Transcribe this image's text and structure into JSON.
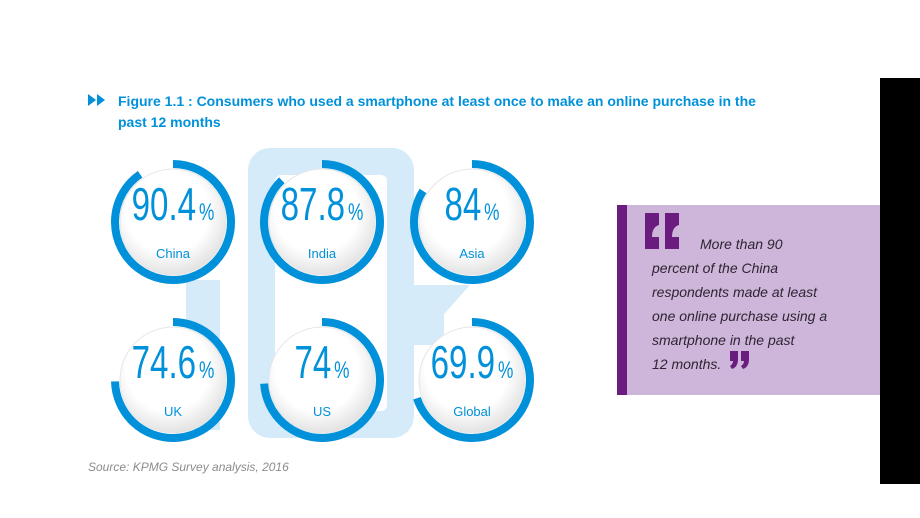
{
  "chart_data": {
    "type": "radial",
    "title_lines": [
      "Figure 1.1 : Consumers who used a smartphone at least once to make an online purchase in the",
      "past 12 months"
    ],
    "categories": [
      "China",
      "India",
      "Asia",
      "UK",
      "US",
      "Global"
    ],
    "values": [
      90.4,
      87.8,
      84,
      74.6,
      74,
      69.9
    ],
    "unit": "%",
    "ylim": [
      0,
      100
    ],
    "color": "#0091da",
    "quote_lines": [
      "More than 90",
      "percent of the China",
      "respondents made at least",
      "one online purchase using a",
      "smartphone in the past",
      "12 months."
    ],
    "source": "Source: KPMG Survey analysis, 2016"
  }
}
